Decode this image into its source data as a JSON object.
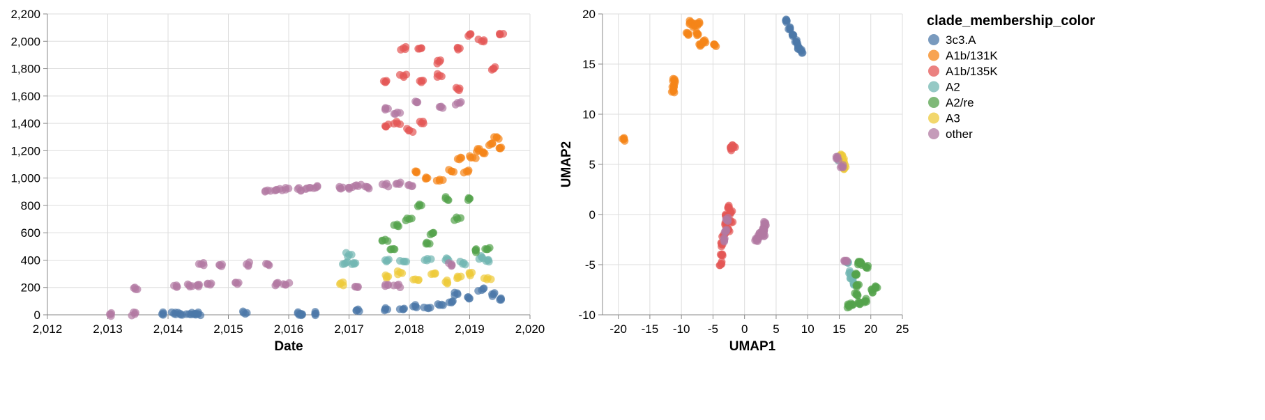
{
  "legend": {
    "title": "clade_membership_color",
    "items": [
      {
        "label": "3c3.A",
        "color": "#4c78a8"
      },
      {
        "label": "A1b/131K",
        "color": "#f58518"
      },
      {
        "label": "A1b/135K",
        "color": "#e45756"
      },
      {
        "label": "A2",
        "color": "#72b7b2"
      },
      {
        "label": "A2/re",
        "color": "#54a24b"
      },
      {
        "label": "A3",
        "color": "#eeca3b"
      },
      {
        "label": "other",
        "color": "#b279a2"
      }
    ]
  },
  "chart_data": [
    {
      "type": "scatter",
      "xlabel": "Date",
      "ylabel": "",
      "xlim": [
        2012,
        2020
      ],
      "ylim": [
        0,
        2200
      ],
      "x_ticks": [
        "2,012",
        "2,013",
        "2,014",
        "2,015",
        "2,016",
        "2,017",
        "2,018",
        "2,019",
        "2,020"
      ],
      "y_ticks": [
        "0",
        "200",
        "400",
        "600",
        "800",
        "1,000",
        "1,200",
        "1,400",
        "1,600",
        "1,800",
        "2,000",
        "2,200"
      ],
      "grid": true,
      "series": [
        {
          "name": "3c3.A",
          "points": [
            [
              2013.9,
              5
            ],
            [
              2014.1,
              8
            ],
            [
              2014.2,
              8
            ],
            [
              2014.35,
              6
            ],
            [
              2014.45,
              8
            ],
            [
              2014.5,
              6
            ],
            [
              2015.25,
              15
            ],
            [
              2016.15,
              10
            ],
            [
              2016.2,
              8
            ],
            [
              2016.45,
              10
            ],
            [
              2017.15,
              40
            ],
            [
              2017.6,
              40
            ],
            [
              2017.9,
              40
            ],
            [
              2018.1,
              60
            ],
            [
              2018.3,
              50
            ],
            [
              2018.5,
              70
            ],
            [
              2018.7,
              90
            ],
            [
              2018.8,
              150
            ],
            [
              2019.0,
              120
            ],
            [
              2019.2,
              180
            ],
            [
              2019.4,
              150
            ],
            [
              2019.5,
              110
            ]
          ]
        },
        {
          "name": "A1b/131K",
          "points": [
            [
              2018.1,
              1050
            ],
            [
              2018.3,
              1000
            ],
            [
              2018.5,
              980
            ],
            [
              2018.7,
              1050
            ],
            [
              2018.85,
              1150
            ],
            [
              2018.95,
              1050
            ],
            [
              2019.05,
              1150
            ],
            [
              2019.15,
              1200
            ],
            [
              2019.25,
              1180
            ],
            [
              2019.35,
              1250
            ],
            [
              2019.45,
              1300
            ],
            [
              2019.5,
              1220
            ]
          ]
        },
        {
          "name": "A1b/135K",
          "points": [
            [
              2017.6,
              1380
            ],
            [
              2017.8,
              1400
            ],
            [
              2018.0,
              1350
            ],
            [
              2018.2,
              1400
            ],
            [
              2017.6,
              1700
            ],
            [
              2017.9,
              1750
            ],
            [
              2018.2,
              1700
            ],
            [
              2018.5,
              1750
            ],
            [
              2018.8,
              1650
            ],
            [
              2017.9,
              1950
            ],
            [
              2018.2,
              1950
            ],
            [
              2018.5,
              1850
            ],
            [
              2018.8,
              1950
            ],
            [
              2019.0,
              2050
            ],
            [
              2019.2,
              2000
            ],
            [
              2019.4,
              1800
            ],
            [
              2019.5,
              2050
            ]
          ]
        },
        {
          "name": "A2",
          "points": [
            [
              2016.95,
              380
            ],
            [
              2017.0,
              440
            ],
            [
              2017.05,
              370
            ],
            [
              2017.6,
              400
            ],
            [
              2017.9,
              390
            ],
            [
              2018.3,
              410
            ],
            [
              2018.6,
              400
            ],
            [
              2018.9,
              380
            ],
            [
              2019.2,
              420
            ],
            [
              2019.3,
              400
            ]
          ]
        },
        {
          "name": "A2/re",
          "points": [
            [
              2017.6,
              550
            ],
            [
              2017.8,
              650
            ],
            [
              2018.0,
              700
            ],
            [
              2018.2,
              800
            ],
            [
              2018.4,
              600
            ],
            [
              2018.6,
              850
            ],
            [
              2018.8,
              700
            ],
            [
              2019.0,
              850
            ],
            [
              2019.1,
              470
            ],
            [
              2019.3,
              480
            ],
            [
              2018.3,
              520
            ],
            [
              2017.7,
              480
            ]
          ]
        },
        {
          "name": "A3",
          "points": [
            [
              2016.85,
              225
            ],
            [
              2017.65,
              280
            ],
            [
              2017.85,
              310
            ],
            [
              2018.1,
              260
            ],
            [
              2018.4,
              300
            ],
            [
              2018.6,
              240
            ],
            [
              2018.8,
              280
            ],
            [
              2019.0,
              300
            ],
            [
              2019.3,
              270
            ]
          ]
        },
        {
          "name": "other",
          "points": [
            [
              2013.05,
              5
            ],
            [
              2013.45,
              200
            ],
            [
              2013.45,
              5
            ],
            [
              2014.15,
              205
            ],
            [
              2014.35,
              215
            ],
            [
              2014.5,
              220
            ],
            [
              2014.55,
              370
            ],
            [
              2014.7,
              220
            ],
            [
              2014.85,
              365
            ],
            [
              2015.15,
              225
            ],
            [
              2015.3,
              370
            ],
            [
              2015.65,
              910
            ],
            [
              2015.65,
              370
            ],
            [
              2015.8,
              915
            ],
            [
              2015.8,
              225
            ],
            [
              2015.95,
              915
            ],
            [
              2015.95,
              220
            ],
            [
              2016.15,
              920
            ],
            [
              2016.3,
              925
            ],
            [
              2016.45,
              930
            ],
            [
              2016.85,
              925
            ],
            [
              2017.0,
              930
            ],
            [
              2017.15,
              940
            ],
            [
              2017.3,
              935
            ],
            [
              2017.15,
              205
            ],
            [
              2017.6,
              950
            ],
            [
              2017.8,
              960
            ],
            [
              2018.0,
              950
            ],
            [
              2017.6,
              1500
            ],
            [
              2017.8,
              1480
            ],
            [
              2018.1,
              1560
            ],
            [
              2018.5,
              1520
            ],
            [
              2018.8,
              1550
            ],
            [
              2017.6,
              210
            ],
            [
              2017.8,
              215
            ],
            [
              2018.7,
              370
            ]
          ]
        }
      ]
    },
    {
      "type": "scatter",
      "xlabel": "UMAP1",
      "ylabel": "UMAP2",
      "xlim": [
        -22.5,
        25
      ],
      "ylim": [
        -10,
        20
      ],
      "x_ticks": [
        "-20",
        "-15",
        "-10",
        "-5",
        "0",
        "5",
        "10",
        "15",
        "20",
        "25"
      ],
      "y_ticks": [
        "-10",
        "-5",
        "0",
        "5",
        "10",
        "15",
        "20"
      ],
      "grid": true,
      "series": [
        {
          "name": "3c3.A",
          "points": [
            [
              6.7,
              19.3
            ],
            [
              7.2,
              18.6
            ],
            [
              7.7,
              17.9
            ],
            [
              8.2,
              17.2
            ],
            [
              8.7,
              16.6
            ],
            [
              9.0,
              16.3
            ]
          ]
        },
        {
          "name": "A1b/131K",
          "points": [
            [
              -19.1,
              7.5
            ],
            [
              -11.3,
              12.3
            ],
            [
              -11.2,
              12.9
            ],
            [
              -11.1,
              13.5
            ],
            [
              -9.0,
              18.0
            ],
            [
              -8.5,
              19.2
            ],
            [
              -7.5,
              18.0
            ],
            [
              -7.0,
              17.0
            ],
            [
              -6.4,
              17.2
            ],
            [
              -4.7,
              16.9
            ],
            [
              -8.0,
              18.9
            ],
            [
              -7.3,
              19.0
            ]
          ]
        },
        {
          "name": "A1b/135K",
          "points": [
            [
              -2.2,
              6.6
            ],
            [
              -1.7,
              6.8
            ],
            [
              -3.7,
              -4.9
            ],
            [
              -3.6,
              -4.0
            ],
            [
              -3.5,
              -3.0
            ],
            [
              -3.3,
              -2.0
            ],
            [
              -3.1,
              -1.0
            ],
            [
              -3.0,
              0.0
            ],
            [
              -2.6,
              0.7
            ],
            [
              -2.2,
              0.2
            ],
            [
              -2.1,
              -0.8
            ],
            [
              -2.6,
              -1.5
            ]
          ]
        },
        {
          "name": "A2",
          "points": [
            [
              15.0,
              5.6
            ],
            [
              16.3,
              -4.8
            ],
            [
              16.7,
              -5.8
            ],
            [
              17.0,
              -6.4
            ],
            [
              17.3,
              -6.9
            ]
          ]
        },
        {
          "name": "A2/re",
          "points": [
            [
              18.0,
              -4.8
            ],
            [
              18.5,
              -4.9
            ],
            [
              17.6,
              -6.0
            ],
            [
              17.9,
              -7.0
            ],
            [
              17.7,
              -8.0
            ],
            [
              17.0,
              -9.0
            ],
            [
              16.5,
              -9.1
            ],
            [
              18.3,
              -8.9
            ],
            [
              19.2,
              -8.6
            ],
            [
              20.2,
              -7.6
            ],
            [
              20.8,
              -7.2
            ],
            [
              19.3,
              -5.3
            ]
          ]
        },
        {
          "name": "A3",
          "points": [
            [
              15.3,
              5.9
            ],
            [
              15.6,
              5.4
            ],
            [
              15.7,
              4.9
            ],
            [
              15.8,
              4.6
            ]
          ]
        },
        {
          "name": "other",
          "points": [
            [
              14.7,
              5.6
            ],
            [
              15.4,
              4.8
            ],
            [
              16.0,
              -4.6
            ],
            [
              1.9,
              -2.6
            ],
            [
              2.2,
              -2.2
            ],
            [
              2.6,
              -1.9
            ],
            [
              2.9,
              -1.6
            ],
            [
              3.2,
              -1.2
            ],
            [
              3.3,
              -0.9
            ],
            [
              2.9,
              -1.4
            ],
            [
              3.0,
              -2.0
            ],
            [
              -3.0,
              -1.7
            ],
            [
              -3.2,
              -2.5
            ],
            [
              -2.8,
              -0.5
            ]
          ]
        }
      ]
    }
  ]
}
